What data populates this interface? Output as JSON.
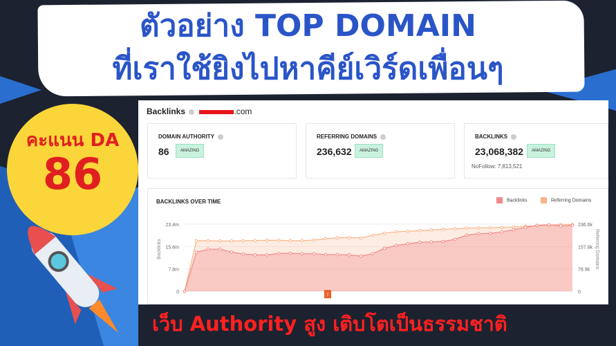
{
  "title": {
    "line1": "ตัวอย่าง TOP DOMAIN",
    "line2": "ที่เราใช้ยิงไปหาคีย์เวิร์ดเพื่อนๆ"
  },
  "badge": {
    "label": "คะแนน DA",
    "value": "86"
  },
  "footer": "เว็บ Authority สูง เติบโตเป็นธรรมชาติ",
  "colors": {
    "title": "#2a55c8",
    "accent_red": "#e02020",
    "circle": "#fbd63a",
    "backlinks": "#f08a8a",
    "referring": "#f7b48a"
  },
  "screenshot": {
    "heading": "Backlinks",
    "domain_suffix": ".com",
    "cards": [
      {
        "label": "DOMAIN AUTHORITY",
        "value": "86",
        "badge": "AMAZING"
      },
      {
        "label": "REFERRING DOMAINS",
        "value": "236,632",
        "badge": "AMAZING"
      },
      {
        "label": "BACKLINKS",
        "value": "23,068,382",
        "badge": "AMAZING",
        "note": "NoFollow: 7,813,521"
      }
    ],
    "chart_title": "BACKLINKS OVER TIME",
    "marker": "!"
  },
  "chart_data": {
    "type": "line",
    "title": "BACKLINKS OVER TIME",
    "ylabel": "Backlinks",
    "y2label": "Referring Domains",
    "yticks": [
      "0",
      "7.8m",
      "15.6m",
      "23.4m"
    ],
    "y2ticks": [
      "0",
      "78.9k",
      "157.8k",
      "236.6k"
    ],
    "ylim": [
      0,
      23.4
    ],
    "y2lim": [
      0,
      236.6
    ],
    "legend": "top-right",
    "grid": true,
    "series": [
      {
        "name": "Backlinks",
        "axis": "left",
        "unit": "m",
        "values": [
          0,
          13.6,
          14.7,
          14.7,
          13.7,
          13.0,
          12.7,
          12.7,
          13.2,
          13.3,
          13.1,
          13.1,
          12.8,
          12.8,
          12.7,
          12.3,
          13.1,
          15.0,
          16.0,
          16.6,
          17.1,
          17.2,
          17.4,
          18.1,
          19.6,
          20.1,
          20.2,
          20.7,
          21.5,
          22.3,
          23.0,
          23.2,
          22.8,
          23.0
        ]
      },
      {
        "name": "Referring Domains",
        "axis": "right",
        "unit": "k",
        "values": [
          0,
          178.3,
          178.3,
          177.5,
          177.5,
          178.3,
          179.1,
          179.9,
          179.9,
          178.3,
          178.3,
          180.7,
          185.6,
          188.8,
          189.6,
          188.0,
          197.8,
          205.1,
          209.9,
          211.6,
          214.0,
          216.4,
          218.8,
          220.5,
          222.9,
          223.7,
          224.5,
          225.3,
          226.9,
          229.4,
          231.0,
          232.6,
          235.8,
          235.8
        ]
      }
    ]
  }
}
